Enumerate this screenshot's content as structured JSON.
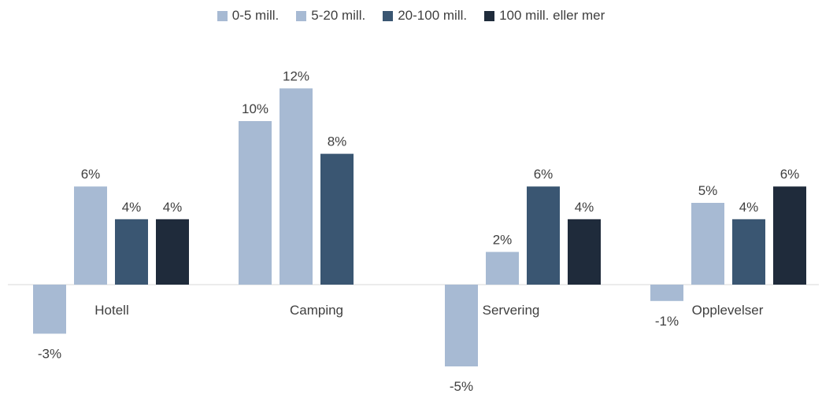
{
  "chart_data": {
    "type": "bar",
    "categories": [
      "Hotell",
      "Camping",
      "Servering",
      "Opplevelser"
    ],
    "series": [
      {
        "name": "0-5 mill.",
        "color": "#a7bad3",
        "values": [
          -3,
          10,
          -5,
          -1
        ],
        "labels": [
          "-3%",
          "10%",
          "-5%",
          "-1%"
        ]
      },
      {
        "name": "5-20 mill.",
        "color": "#a7bad3",
        "values": [
          6,
          12,
          2,
          5
        ],
        "labels": [
          "6%",
          "12%",
          "2%",
          "5%"
        ]
      },
      {
        "name": "20-100 mill.",
        "color": "#3a5672",
        "values": [
          4,
          8,
          6,
          4
        ],
        "labels": [
          "4%",
          "8%",
          "6%",
          "4%"
        ]
      },
      {
        "name": "100 mill. eller mer",
        "color": "#1f2b3b",
        "values": [
          4,
          null,
          4,
          6
        ],
        "labels": [
          "4%",
          "",
          "4%",
          "6%"
        ]
      }
    ],
    "ylim": [
      -6,
      14
    ],
    "grid": false,
    "legend_position": "top"
  }
}
